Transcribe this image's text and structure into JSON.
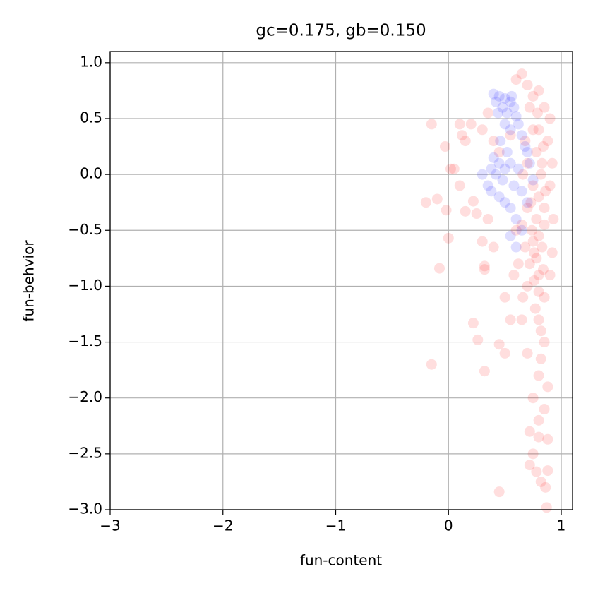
{
  "chart_data": {
    "type": "scatter",
    "title": "gc=0.175, gb=0.150",
    "xlabel": "fun-content",
    "ylabel": "fun-behvior",
    "xlim": [
      -3,
      1.1
    ],
    "ylim": [
      -3,
      1.1
    ],
    "grid": true,
    "opacity": 0.13,
    "xticks": [
      {
        "value": -3,
        "label": "−3"
      },
      {
        "value": -2,
        "label": "−2"
      },
      {
        "value": -1,
        "label": "−1"
      },
      0,
      1
    ],
    "yticks": [
      {
        "value": 1,
        "label": "1.0"
      },
      0.5,
      {
        "value": 0,
        "label": "0.0"
      },
      {
        "value": -0.5,
        "label": "−0.5"
      },
      {
        "value": -1,
        "label": "−1.0"
      },
      {
        "value": -1.5,
        "label": "−1.5"
      },
      {
        "value": -2,
        "label": "−2.0"
      },
      {
        "value": -2.5,
        "label": "−2.5"
      },
      {
        "value": -3,
        "label": "−3.0"
      }
    ],
    "series": [
      {
        "color": "#ff0000",
        "x": [
          -0.15,
          -0.2,
          -0.1,
          -0.03,
          0.02,
          0.05,
          0.1,
          0.12,
          0.1,
          0.15,
          0.2,
          0.15,
          -0.02,
          0,
          0.22,
          0.25,
          0.3,
          0.32,
          0.32,
          -0.08,
          0.22,
          0.26,
          0.32,
          -0.15,
          0.45,
          0.45,
          0.5,
          0.5,
          0.55,
          0.4,
          0.35,
          0.3,
          0.35,
          0.4,
          0.45,
          0.55,
          0.6,
          0.65,
          0.7,
          0.75,
          0.8,
          0.85,
          0.9,
          0.88,
          0.92,
          0.9,
          0.93,
          0.92,
          0.9,
          0.85,
          0.8,
          0.85,
          0.82,
          0.88,
          0.8,
          0.75,
          0.85,
          0.8,
          0.72,
          0.75,
          0.8,
          0.88,
          0.72,
          0.78,
          0.88,
          0.82,
          0.86,
          0.87,
          0.7,
          0.65,
          0.7,
          0.72,
          0.75,
          0.78,
          0.8,
          0.82,
          0.78,
          0.75,
          0.72,
          0.68,
          0.66,
          0.7,
          0.74,
          0.76,
          0.8,
          0.83,
          0.85,
          0.83,
          0.8,
          0.77,
          0.82,
          0.8,
          0.75,
          0.7,
          0.6,
          0.62,
          0.58,
          0.65,
          0.85,
          0.8,
          0.78,
          0.84,
          0.76,
          0.86,
          0.84,
          0.79,
          0.73,
          0.68,
          0.66
        ],
        "y": [
          0.45,
          -0.25,
          -0.22,
          0.25,
          0.05,
          0.05,
          -0.1,
          0.35,
          0.45,
          0.3,
          0.45,
          -0.33,
          -0.32,
          -0.57,
          -0.24,
          -0.35,
          -0.6,
          -0.82,
          -0.85,
          -0.84,
          -1.33,
          -1.48,
          -1.76,
          -1.7,
          -2.84,
          -1.52,
          -1.6,
          -1.1,
          -1.3,
          -0.65,
          -0.4,
          0.4,
          0.55,
          0.3,
          0.2,
          0.35,
          0.85,
          0.9,
          0.8,
          0.7,
          0.75,
          0.6,
          0.5,
          0.3,
          0.1,
          -0.1,
          -0.4,
          -0.7,
          -0.9,
          -1.1,
          -1.3,
          -1.5,
          -1.65,
          -1.9,
          -1.8,
          -2.0,
          -2.1,
          -2.2,
          -2.3,
          -2.5,
          -2.35,
          -2.37,
          -2.6,
          -2.66,
          -2.65,
          -2.75,
          -2.8,
          -2.98,
          -1.6,
          -1.3,
          -1.0,
          -0.8,
          -0.6,
          -0.4,
          -0.2,
          0.0,
          0.2,
          0.4,
          0.6,
          0.3,
          0.0,
          -0.3,
          -0.5,
          -0.7,
          -0.9,
          -0.65,
          -0.3,
          0.1,
          0.4,
          -1.2,
          -1.4,
          -1.05,
          -0.1,
          0.1,
          -0.5,
          -0.8,
          -0.9,
          -0.45,
          -0.45,
          -0.55,
          -0.75,
          -0.85,
          -0.95,
          -0.15,
          0.25,
          0.55,
          -0.25,
          -0.65,
          -1.1
        ]
      },
      {
        "color": "#0000ff",
        "x": [
          0.4,
          0.45,
          0.5,
          0.55,
          0.48,
          0.52,
          0.58,
          0.42,
          0.6,
          0.5,
          0.55,
          0.62,
          0.65,
          0.45,
          0.4,
          0.5,
          0.55,
          0.42,
          0.48,
          0.3,
          0.35,
          0.38,
          0.45,
          0.5,
          0.55,
          0.6,
          0.65,
          0.55,
          0.6,
          0.7,
          0.72,
          0.75,
          0.68,
          0.62,
          0.58,
          0.65,
          0.7,
          0.46,
          0.52,
          0.44,
          0.56,
          0.38
        ],
        "y": [
          0.72,
          0.7,
          0.68,
          0.65,
          0.6,
          0.55,
          0.6,
          0.65,
          0.52,
          0.45,
          0.4,
          0.45,
          0.35,
          0.1,
          0.15,
          0.05,
          0.1,
          0.0,
          -0.05,
          0.0,
          -0.1,
          -0.15,
          -0.2,
          -0.25,
          -0.3,
          -0.4,
          -0.5,
          -0.55,
          -0.65,
          0.2,
          0.1,
          -0.05,
          0.25,
          0.05,
          -0.1,
          -0.15,
          -0.25,
          0.3,
          0.2,
          0.55,
          0.7,
          0.05
        ]
      }
    ]
  }
}
